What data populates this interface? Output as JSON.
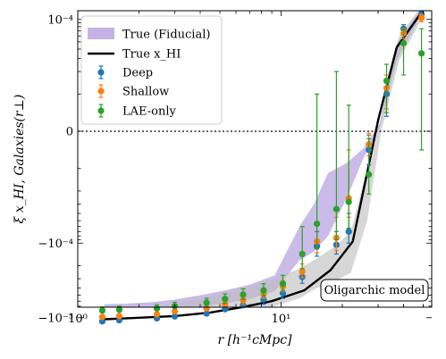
{
  "chart_data": {
    "type": "line",
    "title": "",
    "xlabel": "r [h⁻¹cMpc]",
    "ylabel": "ξ x_HI, Galaxies(r⊥)",
    "x_scale": "log",
    "y_scale": "symlog",
    "xlim": [
      1,
      55
    ],
    "ylim": [
      -0.002,
      0.00018
    ],
    "x_ticks": [
      {
        "value": 1,
        "label": "10⁰"
      },
      {
        "value": 10,
        "label": "10¹"
      }
    ],
    "y_ticks": [
      {
        "value": 0.0001,
        "label": "10⁻⁴"
      },
      {
        "value": 0,
        "label": "0"
      },
      {
        "value": -0.0001,
        "label": "−10⁻⁴"
      },
      {
        "value": -0.001,
        "label": "−10⁻³"
      }
    ],
    "legend": {
      "position": "top-left",
      "entries": [
        "True (Fiducial)",
        "True x_HI",
        "Deep",
        "Shallow",
        "LAE-only"
      ]
    },
    "annotation": "Oligarchic model",
    "zero_line": true,
    "colors": {
      "fiducial_band": "#b8a4e0",
      "true_band": "#bdbdbd",
      "true_line": "#000000",
      "deep": "#1f77b4",
      "shallow": "#ff7f0e",
      "lae_only": "#2ca02c"
    },
    "bands": [
      {
        "name": "True (Fiducial)",
        "x": [
          1.35,
          1.7,
          2.3,
          3.0,
          4.0,
          5.3,
          7.0,
          9.3,
          12.3,
          14.5,
          17.0,
          21.0,
          25.5,
          30.5,
          37.0,
          48.0
        ],
        "upper": [
          -0.00066,
          -0.00065,
          -0.00062,
          -0.00057,
          -0.0005,
          -0.00043,
          -0.00036,
          -0.00027,
          -6e-05,
          -3e-05,
          -1.15e-05,
          -8.5e-06,
          -4.5e-06,
          2e-06,
          4.8e-05,
          0.000132
        ],
        "lower": [
          -0.00095,
          -0.00092,
          -0.00088,
          -0.0008,
          -0.00072,
          -0.00064,
          -0.00056,
          -0.00044,
          -0.00017,
          -0.00013,
          -8e-05,
          -2.5e-05,
          -7e-06,
          8e-07,
          2.8e-05,
          0.000105
        ]
      },
      {
        "name": "True x_HI",
        "x": [
          1.35,
          1.7,
          2.3,
          3.0,
          4.0,
          5.3,
          7.0,
          9.3,
          12.3,
          15.0,
          18.5,
          22.0,
          26.5,
          31.0,
          38.0,
          48.0
        ],
        "upper": [
          -0.00078,
          -0.00076,
          -0.00073,
          -0.00065,
          -0.00056,
          -0.00046,
          -0.00038,
          -0.0003,
          -0.00022,
          -0.00016,
          -0.00011,
          -7e-05,
          -1e-05,
          3e-06,
          6e-05,
          0.00014
        ],
        "lower": [
          -0.0015,
          -0.00145,
          -0.00138,
          -0.0013,
          -0.00115,
          -0.001,
          -0.00085,
          -0.0007,
          -0.00055,
          -0.0004,
          -0.00032,
          -0.00025,
          -5e-05,
          -3e-07,
          2.8e-05,
          9e-05
        ]
      }
    ],
    "true_line": {
      "name": "True x_HI",
      "x": [
        1.35,
        2.0,
        3.0,
        4.5,
        6.5,
        9.0,
        13.0,
        17.5,
        22.5,
        30.0,
        37.0,
        48.0
      ],
      "y": [
        -0.00105,
        -0.001,
        -0.00095,
        -0.00085,
        -0.00072,
        -0.0006,
        -0.00043,
        -0.00023,
        -9.5e-05,
        3e-06,
        4.2e-05,
        0.000115
      ]
    },
    "series": [
      {
        "name": "Deep",
        "x": [
          1.32,
          1.6,
          2.45,
          3.0,
          4.3,
          5.3,
          6.5,
          8.2,
          10.2,
          12.7,
          15.0,
          18.7,
          21.5,
          27.0,
          33.0,
          40.0,
          49.0
        ],
        "y": [
          -0.00112,
          -0.00108,
          -0.00102,
          -0.00096,
          -0.00088,
          -0.00077,
          -0.00068,
          -0.00057,
          -0.00047,
          -0.000285,
          -0.00011,
          -0.000105,
          -7e-05,
          -5e-06,
          1e-05,
          7.5e-05,
          0.000118
        ],
        "yerr": [
          0.00016,
          0.00015,
          0.00014,
          0.00013,
          0.00012,
          0.00011,
          0.0001,
          9e-05,
          8e-05,
          6e-05,
          4e-05,
          3.5e-05,
          3e-05,
          4e-06,
          6e-06,
          1e-05,
          1e-05
        ]
      },
      {
        "name": "Shallow",
        "x": [
          1.32,
          1.6,
          2.45,
          3.0,
          4.3,
          5.3,
          6.5,
          8.2,
          10.2,
          12.7,
          15.0,
          18.7,
          21.5,
          27.0,
          33.0,
          40.0,
          49.0
        ],
        "y": [
          -0.00098,
          -0.00095,
          -0.0009,
          -0.00082,
          -0.00075,
          -0.00066,
          -0.00058,
          -0.00048,
          -0.00038,
          -0.00024,
          -9.5e-05,
          -8.5e-05,
          -2.5e-05,
          -3.5e-06,
          1.2e-05,
          6.5e-05,
          0.000105
        ],
        "yerr": [
          0.00012,
          0.00011,
          0.0001,
          0.0001,
          9e-05,
          8e-05,
          8e-05,
          7e-05,
          6e-05,
          5e-05,
          4e-05,
          4e-05,
          2e-05,
          3e-06,
          6e-06,
          1e-05,
          1.2e-05
        ]
      },
      {
        "name": "LAE-only",
        "x": [
          1.32,
          1.6,
          2.45,
          3.0,
          4.3,
          5.3,
          6.5,
          8.2,
          10.2,
          12.7,
          15.0,
          18.7,
          21.5,
          27.0,
          33.0,
          40.0,
          49.0
        ],
        "y": [
          -0.0008,
          -0.00078,
          -0.00075,
          -0.0007,
          -0.00063,
          -0.00056,
          -0.00049,
          -0.00043,
          -0.00035,
          -0.00014,
          -5.5e-05,
          -3.5e-05,
          -2.8e-05,
          -1.2e-05,
          1.5e-05,
          4.8e-05,
          3.5e-05
        ],
        "yerr": [
          8e-05,
          8e-05,
          8e-05,
          8e-05,
          8e-05,
          8e-05,
          8e-05,
          8e-05,
          8e-05,
          8e-05,
          6.5e-05,
          5.5e-05,
          3.5e-05,
          1e-05,
          1e-05,
          3e-05,
          4e-05
        ]
      }
    ]
  }
}
